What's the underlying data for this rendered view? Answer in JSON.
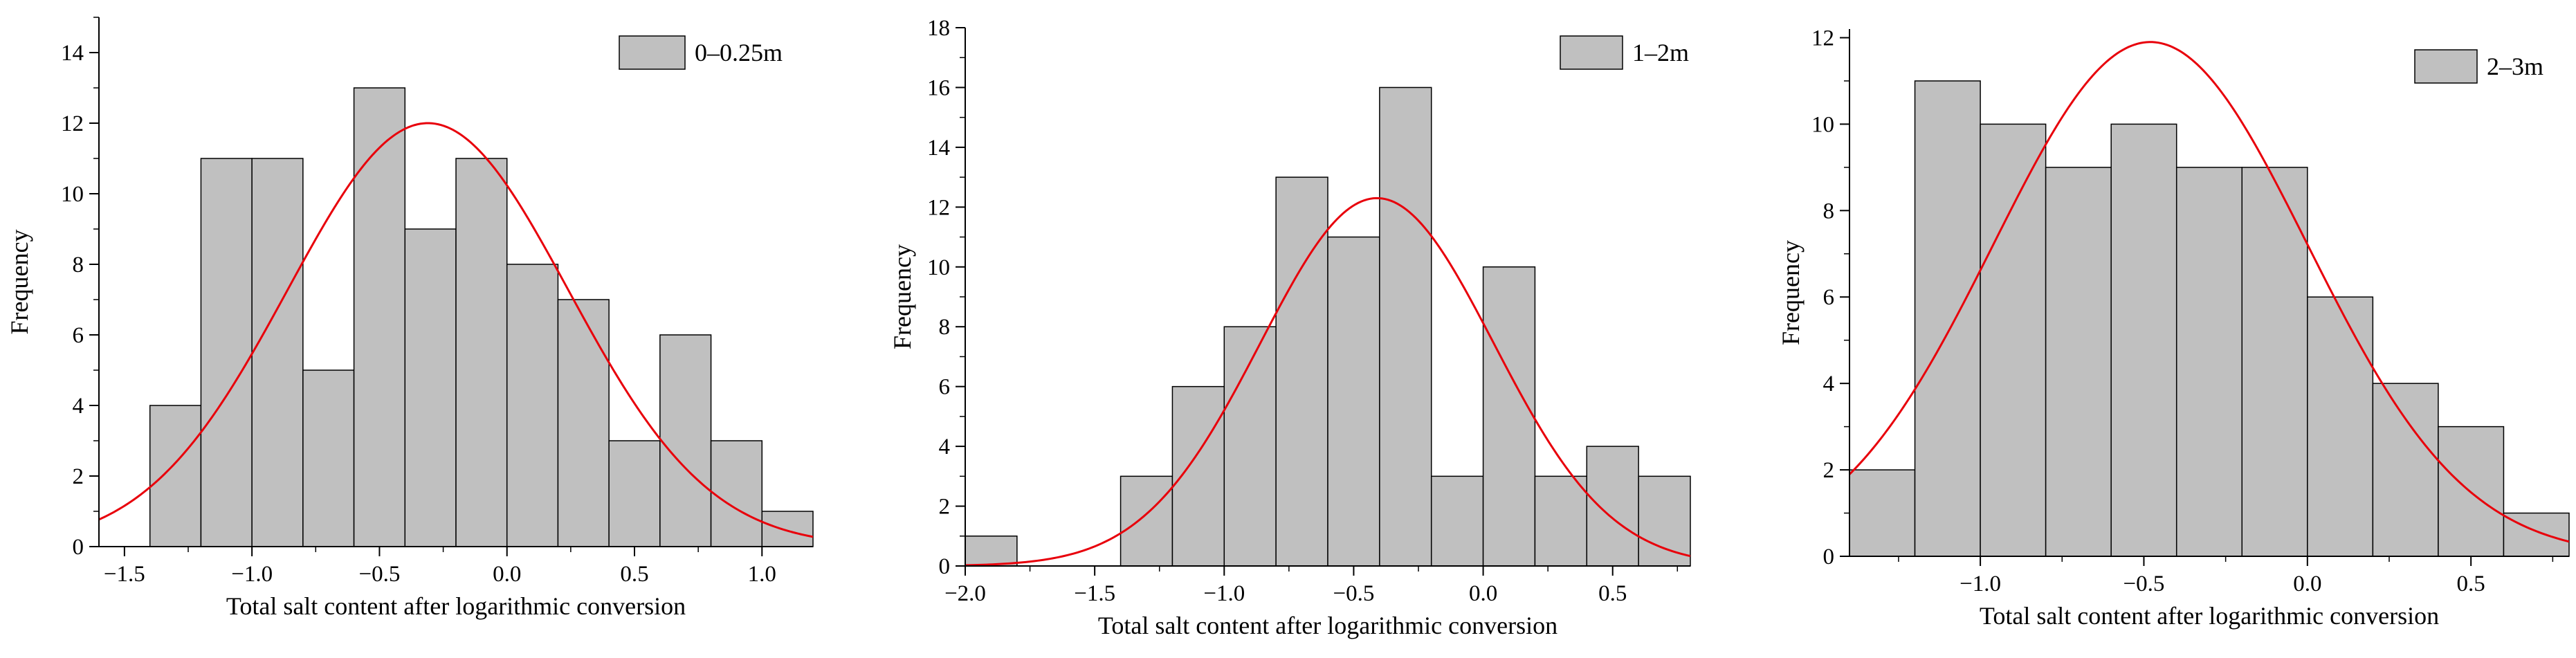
{
  "chart_data": [
    {
      "type": "bar",
      "subtype": "histogram-with-normal-fit",
      "legend": "0–0.25m",
      "legend_position": "top-right",
      "xlabel": "Total salt content after logarithmic conversion",
      "ylabel": "Frequency",
      "xlim": [
        -1.6,
        1.2
      ],
      "ylim": [
        0,
        15
      ],
      "xticks": [
        -1.5,
        -1.0,
        -0.5,
        0.0,
        0.5,
        1.0
      ],
      "xtick_labels": [
        "−1.5",
        "−1.0",
        "−0.5",
        "0.0",
        "0.5",
        "1.0"
      ],
      "yticks": [
        0,
        2,
        4,
        6,
        8,
        10,
        12,
        14
      ],
      "ytick_labels": [
        "0",
        "2",
        "4",
        "6",
        "8",
        "10",
        "12",
        "14"
      ],
      "bin_edges": [
        -1.4,
        -1.2,
        -1.0,
        -0.8,
        -0.6,
        -0.4,
        -0.2,
        0.0,
        0.2,
        0.4,
        0.6,
        0.8,
        1.0,
        1.2
      ],
      "values": [
        4,
        11,
        11,
        5,
        13,
        9,
        11,
        8,
        7,
        3,
        6,
        3,
        1
      ],
      "fit": {
        "peak": 12.0,
        "mean": -0.31,
        "sd": 0.55
      },
      "bar_color": "#c0c0c0",
      "curve_color": "#e8000b"
    },
    {
      "type": "bar",
      "subtype": "histogram-with-normal-fit",
      "legend": "1–2m",
      "legend_position": "top-right",
      "xlabel": "Total salt content after logarithmic conversion",
      "ylabel": "Frequency",
      "xlim": [
        -2.0,
        0.8
      ],
      "ylim": [
        0,
        18
      ],
      "xticks": [
        -2.0,
        -1.5,
        -1.0,
        -0.5,
        0.0,
        0.5
      ],
      "xtick_labels": [
        "−2.0",
        "−1.5",
        "−1.0",
        "−0.5",
        "0.0",
        "0.5"
      ],
      "yticks": [
        0,
        2,
        4,
        6,
        8,
        10,
        12,
        14,
        16,
        18
      ],
      "ytick_labels": [
        "0",
        "2",
        "4",
        "6",
        "8",
        "10",
        "12",
        "14",
        "16",
        "18"
      ],
      "bin_edges": [
        -2.0,
        -1.8,
        -1.6,
        -1.4,
        -1.2,
        -1.0,
        -0.8,
        -0.6,
        -0.4,
        -0.2,
        0.0,
        0.2,
        0.4,
        0.6,
        0.8
      ],
      "values": [
        1,
        0,
        0,
        3,
        6,
        8,
        13,
        11,
        16,
        3,
        10,
        3,
        4,
        3
      ],
      "fit": {
        "peak": 12.3,
        "mean": -0.41,
        "sd": 0.45
      },
      "bar_color": "#c0c0c0",
      "curve_color": "#e8000b"
    },
    {
      "type": "bar",
      "subtype": "histogram-with-normal-fit",
      "legend": "2–3m",
      "legend_position": "top-right",
      "xlabel": "Total salt content after logarithmic conversion",
      "ylabel": "Frequency",
      "xlim": [
        -1.4,
        0.8
      ],
      "ylim": [
        0,
        12.2
      ],
      "xticks": [
        -1.0,
        -0.5,
        0.0,
        0.5
      ],
      "xtick_labels": [
        "−1.0",
        "−0.5",
        "0.0",
        "0.5"
      ],
      "yticks": [
        0,
        2,
        4,
        6,
        8,
        10,
        12
      ],
      "ytick_labels": [
        "0",
        "2",
        "4",
        "6",
        "8",
        "10",
        "12"
      ],
      "bin_edges": [
        -1.4,
        -1.2,
        -1.0,
        -0.8,
        -0.6,
        -0.4,
        -0.2,
        0.0,
        0.2,
        0.4,
        0.6,
        0.8
      ],
      "values": [
        2,
        11,
        10,
        9,
        10,
        9,
        9,
        6,
        4,
        3,
        1
      ],
      "fit": {
        "peak": 11.9,
        "mean": -0.48,
        "sd": 0.48
      },
      "bar_color": "#c0c0c0",
      "curve_color": "#e8000b"
    }
  ]
}
